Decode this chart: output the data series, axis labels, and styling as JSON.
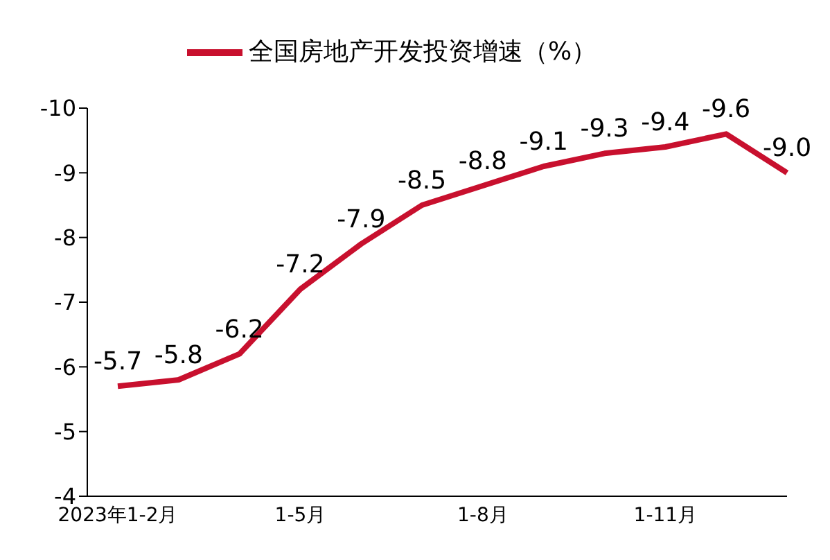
{
  "chart_data": {
    "type": "line",
    "categories": [
      "2023年1-2月",
      null,
      null,
      "1-5月",
      null,
      null,
      "1-8月",
      null,
      null,
      "1-11月",
      null,
      null
    ],
    "series": [
      {
        "name": "全国房地产开发投资增速（%）",
        "color": "#c8102e",
        "values": [
          -5.7,
          -5.8,
          -6.2,
          -7.2,
          -7.9,
          -8.5,
          -8.8,
          -9.1,
          -9.3,
          -9.4,
          -9.6,
          -9.0
        ],
        "value_labels": [
          "-5.7",
          "-5.8",
          "-6.2",
          "-7.2",
          "-7.9",
          "-8.5",
          "-8.8",
          "-9.1",
          "-9.3",
          "-9.4",
          "-9.6",
          "-9.0"
        ]
      }
    ],
    "ylim": [
      -4,
      -10
    ],
    "yticks": [
      -4,
      -5,
      -6,
      -7,
      -8,
      -9,
      -10
    ],
    "legend": "top",
    "grid": false,
    "marker": "none",
    "line_style": "solid"
  }
}
